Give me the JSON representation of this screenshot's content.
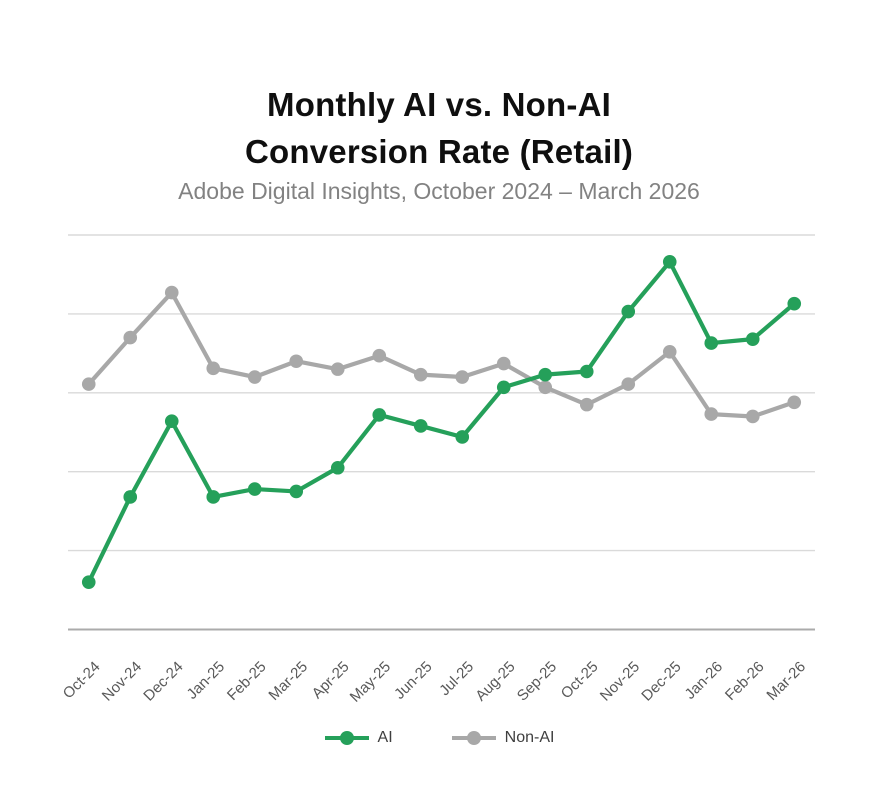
{
  "header": {
    "title_line1": "Monthly AI vs. Non-AI",
    "title_line2": "Conversion Rate (Retail)",
    "subtitle": "Adobe Digital Insights, October 2024 – March 2026"
  },
  "legend": {
    "items": [
      {
        "label": "AI",
        "color": "#25a05a"
      },
      {
        "label": "Non-AI",
        "color": "#a8a8a8"
      }
    ]
  },
  "chart_data": {
    "type": "line",
    "title": "Monthly AI vs. Non-AI Conversion Rate (Retail)",
    "subtitle": "Adobe Digital Insights, October 2024 – March 2026",
    "categories": [
      "Oct-24",
      "Nov-24",
      "Dec-24",
      "Jan-25",
      "Feb-25",
      "Mar-25",
      "Apr-25",
      "May-25",
      "Jun-25",
      "Jul-25",
      "Aug-25",
      "Sep-25",
      "Oct-25",
      "Nov-25",
      "Dec-25",
      "Jan-26",
      "Feb-26",
      "Mar-26"
    ],
    "series": [
      {
        "name": "AI",
        "color": "#25a05a",
        "values": [
          0.6,
          1.68,
          2.64,
          1.68,
          1.78,
          1.75,
          2.05,
          2.72,
          2.58,
          2.44,
          3.07,
          3.23,
          3.27,
          4.03,
          4.66,
          3.63,
          3.68,
          4.13
        ]
      },
      {
        "name": "Non-AI",
        "color": "#a8a8a8",
        "values": [
          3.11,
          3.7,
          4.27,
          3.31,
          3.2,
          3.4,
          3.3,
          3.47,
          3.23,
          3.2,
          3.37,
          3.07,
          2.85,
          3.11,
          3.52,
          2.73,
          2.7,
          2.88
        ]
      }
    ],
    "ylim": [
      0,
      5
    ],
    "grid": {
      "visible": true,
      "color": "#dadada",
      "axis_color": "#ababab",
      "y_step": 1
    },
    "axis": {
      "x_label_rotation": -45,
      "x_label_color": "#595959",
      "y_labels_visible": false
    },
    "legend_position": "bottom",
    "markers": "circle"
  }
}
